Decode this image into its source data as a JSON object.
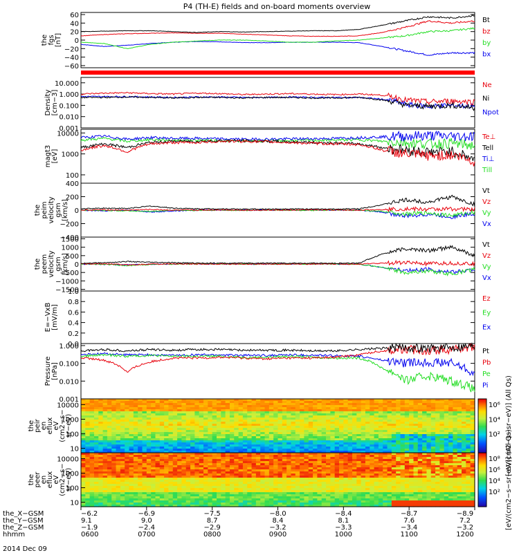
{
  "title": "P4 (TH-E) fields and on-board moments overview",
  "date_label": "2014 Dec 09",
  "colors": {
    "black": "#000000",
    "red": "#e8000b",
    "green": "#22dd22",
    "blue": "#0000ee",
    "bar": "#ff0000"
  },
  "chart_data": [
    {
      "id": "bfield",
      "type": "line",
      "ylabel_lines": [
        "the",
        "fgs",
        "[nT]"
      ],
      "ylim": [
        -65,
        65
      ],
      "yticks": [
        "60",
        "40",
        "20",
        "0",
        "−20",
        "−40",
        "−60"
      ],
      "series": [
        {
          "name": "Bt",
          "color": "black",
          "values": [
            20,
            21,
            22,
            22,
            20,
            18,
            20,
            19,
            20,
            21,
            22,
            22,
            25,
            35,
            45,
            55,
            52,
            58
          ]
        },
        {
          "name": "bz",
          "color": "red",
          "values": [
            10,
            13,
            15,
            16,
            17,
            16,
            16,
            14,
            12,
            10,
            9,
            9,
            10,
            18,
            30,
            45,
            40,
            45
          ]
        },
        {
          "name": "by",
          "color": "green",
          "values": [
            -5,
            -8,
            -20,
            -10,
            -5,
            -2,
            0,
            0,
            -2,
            -5,
            -5,
            -2,
            0,
            5,
            10,
            20,
            22,
            28
          ]
        },
        {
          "name": "bx",
          "color": "blue",
          "values": [
            -10,
            -15,
            -12,
            -8,
            -5,
            -3,
            -4,
            -6,
            -6,
            -5,
            -5,
            -5,
            -6,
            -15,
            -25,
            -35,
            -30,
            -30
          ]
        }
      ]
    },
    {
      "id": "density",
      "type": "line",
      "log": true,
      "ylabel_lines": [
        "Density",
        "[cm−3]"
      ],
      "ylim": [
        0.001,
        30
      ],
      "yticks": [
        "10.000",
        "1.000",
        "0.100",
        "0.010",
        "0.001"
      ],
      "series": [
        {
          "name": "Ne",
          "color": "red",
          "values": [
            1.0,
            1.2,
            1.3,
            1.1,
            1.0,
            1.2,
            1.1,
            0.9,
            1.0,
            1.1,
            1.0,
            0.9,
            1.0,
            0.8,
            0.3,
            0.2,
            0.25,
            0.2
          ]
        },
        {
          "name": "Ni",
          "color": "black",
          "values": [
            0.5,
            0.5,
            0.55,
            0.5,
            0.45,
            0.5,
            0.5,
            0.45,
            0.5,
            0.5,
            0.45,
            0.45,
            0.5,
            0.3,
            0.1,
            0.08,
            0.1,
            0.06
          ]
        },
        {
          "name": "Npot",
          "color": "blue",
          "values": [
            0.6,
            0.6,
            0.6,
            0.55,
            0.5,
            0.55,
            0.55,
            0.5,
            0.5,
            0.55,
            0.5,
            0.5,
            0.5,
            0.35,
            0.12,
            0.08,
            0.1,
            0.08
          ]
        }
      ]
    },
    {
      "id": "temperature",
      "type": "line",
      "log": true,
      "ylabel_lines": [
        "magt3",
        "[eV]"
      ],
      "ylim": [
        40,
        15000
      ],
      "yticks": [
        "10000",
        "1000",
        "100"
      ],
      "series": [
        {
          "name": "Te⊥",
          "color": "red",
          "values": [
            1500,
            2500,
            1200,
            3000,
            3500,
            3500,
            4000,
            4000,
            3800,
            3500,
            3200,
            3000,
            2800,
            1500,
            1000,
            800,
            900,
            400
          ]
        },
        {
          "name": "Tell",
          "color": "black",
          "values": [
            2000,
            3000,
            2000,
            3500,
            4000,
            4000,
            4200,
            4200,
            4000,
            3800,
            3500,
            3300,
            3000,
            2000,
            1500,
            1200,
            1300,
            500
          ]
        },
        {
          "name": "Ti⊥",
          "color": "blue",
          "values": [
            6000,
            7000,
            5000,
            6000,
            5500,
            5500,
            5200,
            5000,
            5000,
            5200,
            5300,
            5500,
            6000,
            6500,
            7000,
            7500,
            7000,
            7000
          ]
        },
        {
          "name": "Till",
          "color": "green",
          "values": [
            4500,
            5500,
            4000,
            4800,
            4500,
            4500,
            4300,
            4200,
            4200,
            4300,
            4400,
            4500,
            4800,
            4000,
            3500,
            3000,
            3200,
            2500
          ]
        }
      ]
    },
    {
      "id": "vion",
      "type": "line",
      "ylabel_lines": [
        "the",
        "peim",
        "velocity",
        "gsm",
        "[km/s]"
      ],
      "ylim": [
        -400,
        400
      ],
      "yticks": [
        "400",
        "200",
        "0",
        "−200",
        "−400"
      ],
      "series": [
        {
          "name": "Vt",
          "color": "black",
          "values": [
            20,
            30,
            25,
            60,
            30,
            20,
            20,
            15,
            15,
            20,
            15,
            15,
            20,
            80,
            150,
            120,
            200,
            80
          ]
        },
        {
          "name": "Vz",
          "color": "red",
          "values": [
            0,
            5,
            0,
            10,
            0,
            0,
            5,
            0,
            0,
            0,
            5,
            0,
            0,
            10,
            20,
            10,
            20,
            10
          ]
        },
        {
          "name": "Vy",
          "color": "green",
          "values": [
            0,
            -5,
            -10,
            -20,
            0,
            -5,
            0,
            -5,
            0,
            0,
            -5,
            0,
            0,
            -20,
            -60,
            -40,
            -80,
            -30
          ]
        },
        {
          "name": "Vx",
          "color": "blue",
          "values": [
            0,
            -10,
            0,
            -30,
            -10,
            0,
            0,
            0,
            0,
            0,
            0,
            0,
            0,
            -30,
            -90,
            -60,
            -100,
            -50
          ]
        }
      ]
    },
    {
      "id": "velec",
      "type": "line",
      "ylabel_lines": [
        "the",
        "peem",
        "velocity",
        "gsm",
        "[km/s]"
      ],
      "ylim": [
        -1600,
        1600
      ],
      "yticks": [
        "1500",
        "1000",
        "500",
        "0",
        "−500",
        "−1000",
        "−1500"
      ],
      "series": [
        {
          "name": "Vt",
          "color": "black",
          "values": [
            50,
            80,
            150,
            100,
            80,
            60,
            50,
            50,
            60,
            50,
            50,
            40,
            60,
            600,
            900,
            800,
            1000,
            500
          ]
        },
        {
          "name": "Vz",
          "color": "red",
          "values": [
            0,
            20,
            -50,
            0,
            10,
            0,
            0,
            0,
            0,
            0,
            0,
            0,
            0,
            50,
            100,
            0,
            50,
            0
          ]
        },
        {
          "name": "Vy",
          "color": "green",
          "values": [
            0,
            -10,
            -100,
            -20,
            0,
            0,
            0,
            0,
            0,
            0,
            0,
            0,
            0,
            -200,
            -500,
            -400,
            -600,
            -300
          ]
        },
        {
          "name": "Vx",
          "color": "blue",
          "values": [
            0,
            -20,
            -50,
            -10,
            0,
            0,
            0,
            0,
            0,
            0,
            0,
            0,
            0,
            -200,
            -400,
            -300,
            -500,
            -300
          ]
        }
      ]
    },
    {
      "id": "efield",
      "type": "line",
      "ylabel_lines": [
        "E=−VxB",
        "[mV/m]"
      ],
      "ylim": [
        0,
        1
      ],
      "yticks": [
        "1.0",
        "0.8",
        "0.6",
        "0.4",
        "0.2",
        "0.0"
      ],
      "series": [
        {
          "name": "Ez",
          "color": "red",
          "values": []
        },
        {
          "name": "Ey",
          "color": "green",
          "values": []
        },
        {
          "name": "Ex",
          "color": "blue",
          "values": []
        }
      ]
    },
    {
      "id": "pressure",
      "type": "line",
      "log": true,
      "ylabel_lines": [
        "Pressure",
        "[nPa]"
      ],
      "ylim": [
        0.001,
        1.3
      ],
      "yticks": [
        "1.000",
        "0.100",
        "0.010",
        "0.001"
      ],
      "series": [
        {
          "name": "Pt",
          "color": "black",
          "values": [
            0.5,
            0.6,
            0.5,
            0.6,
            0.55,
            0.6,
            0.6,
            0.55,
            0.55,
            0.55,
            0.5,
            0.5,
            0.6,
            0.7,
            0.8,
            0.7,
            0.8,
            1.0
          ]
        },
        {
          "name": "Pb",
          "color": "red",
          "values": [
            0.2,
            0.15,
            0.03,
            0.12,
            0.2,
            0.2,
            0.22,
            0.2,
            0.18,
            0.2,
            0.2,
            0.22,
            0.3,
            0.5,
            0.6,
            0.55,
            0.6,
            0.9
          ]
        },
        {
          "name": "Pe",
          "color": "green",
          "values": [
            0.25,
            0.3,
            0.25,
            0.28,
            0.25,
            0.25,
            0.25,
            0.22,
            0.22,
            0.25,
            0.22,
            0.2,
            0.2,
            0.05,
            0.01,
            0.02,
            0.01,
            0.003
          ]
        },
        {
          "name": "Pi",
          "color": "blue",
          "values": [
            0.3,
            0.35,
            0.3,
            0.3,
            0.28,
            0.3,
            0.3,
            0.28,
            0.28,
            0.3,
            0.28,
            0.27,
            0.25,
            0.15,
            0.1,
            0.12,
            0.1,
            0.02
          ]
        }
      ]
    },
    {
      "id": "ion_spec",
      "type": "heatmap",
      "ylabel_lines": [
        "the",
        "peir",
        "en",
        "eflux",
        "eV",
        "(cm2−s−",
        "sr−eV)"
      ],
      "yticks": [
        "10000",
        "1000",
        "100",
        "10"
      ]
    },
    {
      "id": "elec_spec",
      "type": "heatmap",
      "ylabel_lines": [
        "the",
        "peer",
        "en",
        "eflux",
        "eV",
        "(cm2−s−",
        "sr−eV)"
      ],
      "yticks": [
        "10000",
        "1000",
        "100",
        "10"
      ]
    }
  ],
  "colorbar": {
    "ion": {
      "ticks": [
        "10⁶",
        "10⁴",
        "10²"
      ],
      "label": "[eV/(cm2−s−sr−eV)] (All Qs)"
    },
    "elec": {
      "ticks": [
        "10⁸",
        "10⁶",
        "10⁴",
        "10²"
      ],
      "label": "[eV/(cm2−s−sr−eV)] (All Qs)"
    }
  },
  "xaxis": {
    "row_labels": [
      "the_X−GSM",
      "the_Y−GSM",
      "the_Z−GSM",
      "hhmm"
    ],
    "ticks": [
      [
        "−6.2",
        "9.1",
        "−1.9",
        "0600"
      ],
      [
        "−6.9",
        "9.0",
        "−2.4",
        "0700"
      ],
      [
        "−7.5",
        "8.7",
        "−2.9",
        "0800"
      ],
      [
        "−8.0",
        "8.4",
        "−3.2",
        "0900"
      ],
      [
        "−8.4",
        "8.1",
        "−3.3",
        "1000"
      ],
      [
        "−8.7",
        "7.6",
        "−3.4",
        "1100"
      ],
      [
        "−8.9",
        "7.2",
        "−3.2",
        "1200"
      ]
    ]
  }
}
